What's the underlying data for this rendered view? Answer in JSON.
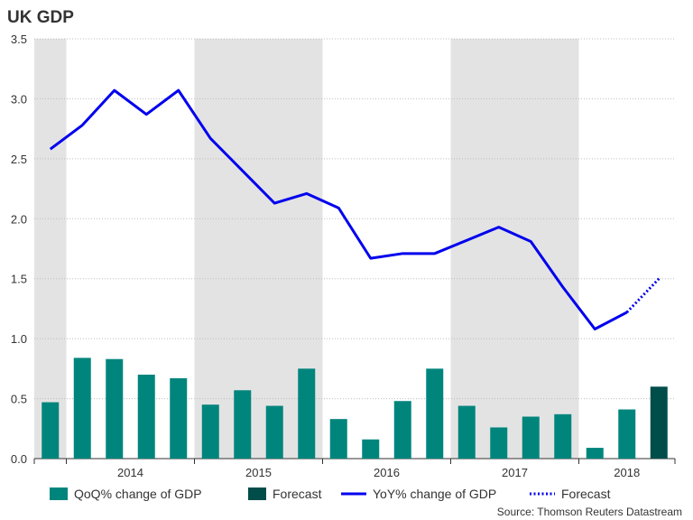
{
  "chart_data": {
    "title": "UK GDP",
    "type": "bar+line",
    "ylim": [
      0,
      3.5
    ],
    "yticks": [
      "0.0",
      "0.5",
      "1.0",
      "1.5",
      "2.0",
      "2.5",
      "3.0",
      "3.5"
    ],
    "x_year_labels": [
      "2014",
      "2015",
      "2016",
      "2017",
      "2018"
    ],
    "quarters": [
      "2013 Q4",
      "2014 Q1",
      "2014 Q2",
      "2014 Q3",
      "2014 Q4",
      "2015 Q1",
      "2015 Q2",
      "2015 Q3",
      "2015 Q4",
      "2016 Q1",
      "2016 Q2",
      "2016 Q3",
      "2016 Q4",
      "2017 Q1",
      "2017 Q2",
      "2017 Q3",
      "2017 Q4",
      "2018 Q1",
      "2018 Q2",
      "2018 Q3"
    ],
    "shaded_years": [
      "2013",
      "2015",
      "2017"
    ],
    "series": [
      {
        "name": "QoQ% change of GDP",
        "type": "bar",
        "color": "#00857d",
        "values": [
          0.47,
          0.84,
          0.83,
          0.7,
          0.67,
          0.45,
          0.57,
          0.44,
          0.75,
          0.33,
          0.16,
          0.48,
          0.75,
          0.44,
          0.26,
          0.35,
          0.37,
          0.09,
          0.41,
          null
        ]
      },
      {
        "name": "Forecast",
        "type": "bar",
        "color": "#004d4a",
        "values": [
          null,
          null,
          null,
          null,
          null,
          null,
          null,
          null,
          null,
          null,
          null,
          null,
          null,
          null,
          null,
          null,
          null,
          null,
          null,
          0.6
        ]
      },
      {
        "name": "YoY% change of GDP",
        "type": "line",
        "color": "#0000ee",
        "values": [
          2.58,
          2.78,
          3.07,
          2.87,
          3.07,
          2.67,
          2.4,
          2.13,
          2.21,
          2.09,
          1.67,
          1.71,
          1.71,
          1.82,
          1.93,
          1.81,
          1.43,
          1.08,
          1.22,
          null
        ]
      },
      {
        "name": "Forecast",
        "type": "line-dotted",
        "color": "#0000ee",
        "values": [
          null,
          null,
          null,
          null,
          null,
          null,
          null,
          null,
          null,
          null,
          null,
          null,
          null,
          null,
          null,
          null,
          null,
          null,
          1.22,
          1.5
        ]
      }
    ],
    "legend": [
      {
        "label": "QoQ% change of GDP",
        "kind": "bar",
        "color": "#00857d"
      },
      {
        "label": "Forecast",
        "kind": "bar",
        "color": "#004d4a"
      },
      {
        "label": "YoY% change of GDP",
        "kind": "line",
        "color": "#0000ee"
      },
      {
        "label": "Forecast",
        "kind": "dotted",
        "color": "#0000ee"
      }
    ],
    "source": "Source: Thomson Reuters Datastream",
    "shade_color": "#e3e3e3",
    "grid_color": "#bdbdbd"
  }
}
